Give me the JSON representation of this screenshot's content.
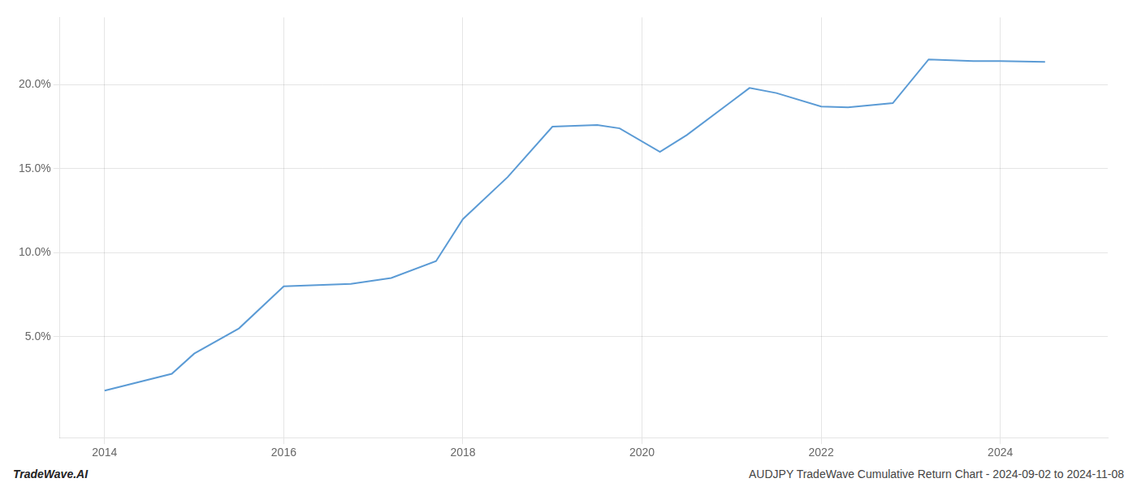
{
  "chart_data": {
    "type": "line",
    "x": [
      2014.0,
      2014.75,
      2015.0,
      2015.5,
      2016.0,
      2016.5,
      2016.75,
      2017.2,
      2017.7,
      2018.0,
      2018.5,
      2019.0,
      2019.25,
      2019.5,
      2019.75,
      2020.2,
      2020.5,
      2021.0,
      2021.2,
      2021.5,
      2022.0,
      2022.3,
      2022.8,
      2023.2,
      2023.7,
      2024.0,
      2024.5
    ],
    "values": [
      1.8,
      2.8,
      4.0,
      5.5,
      8.0,
      8.1,
      8.15,
      8.5,
      9.5,
      12.0,
      14.5,
      17.5,
      17.55,
      17.6,
      17.4,
      16.0,
      17.0,
      19.0,
      19.8,
      19.5,
      18.7,
      18.65,
      18.9,
      21.5,
      21.4,
      21.4,
      21.35
    ],
    "color": "#5b9bd5",
    "marker": "none",
    "xlim": [
      2013.5,
      2025.2
    ],
    "xticks": [
      2014,
      2016,
      2018,
      2020,
      2022,
      2024
    ],
    "ylim": [
      -1.0,
      24.0
    ],
    "yticks": [
      {
        "value": 5.0,
        "label": "5.0%"
      },
      {
        "value": 10.0,
        "label": "10.0%"
      },
      {
        "value": 15.0,
        "label": "15.0%"
      },
      {
        "value": 20.0,
        "label": "20.0%"
      }
    ],
    "grid": true,
    "annotations": [
      "TradeWave.AI",
      "AUDJPY TradeWave Cumulative Return Chart - 2024-09-02 to 2024-11-08"
    ]
  }
}
